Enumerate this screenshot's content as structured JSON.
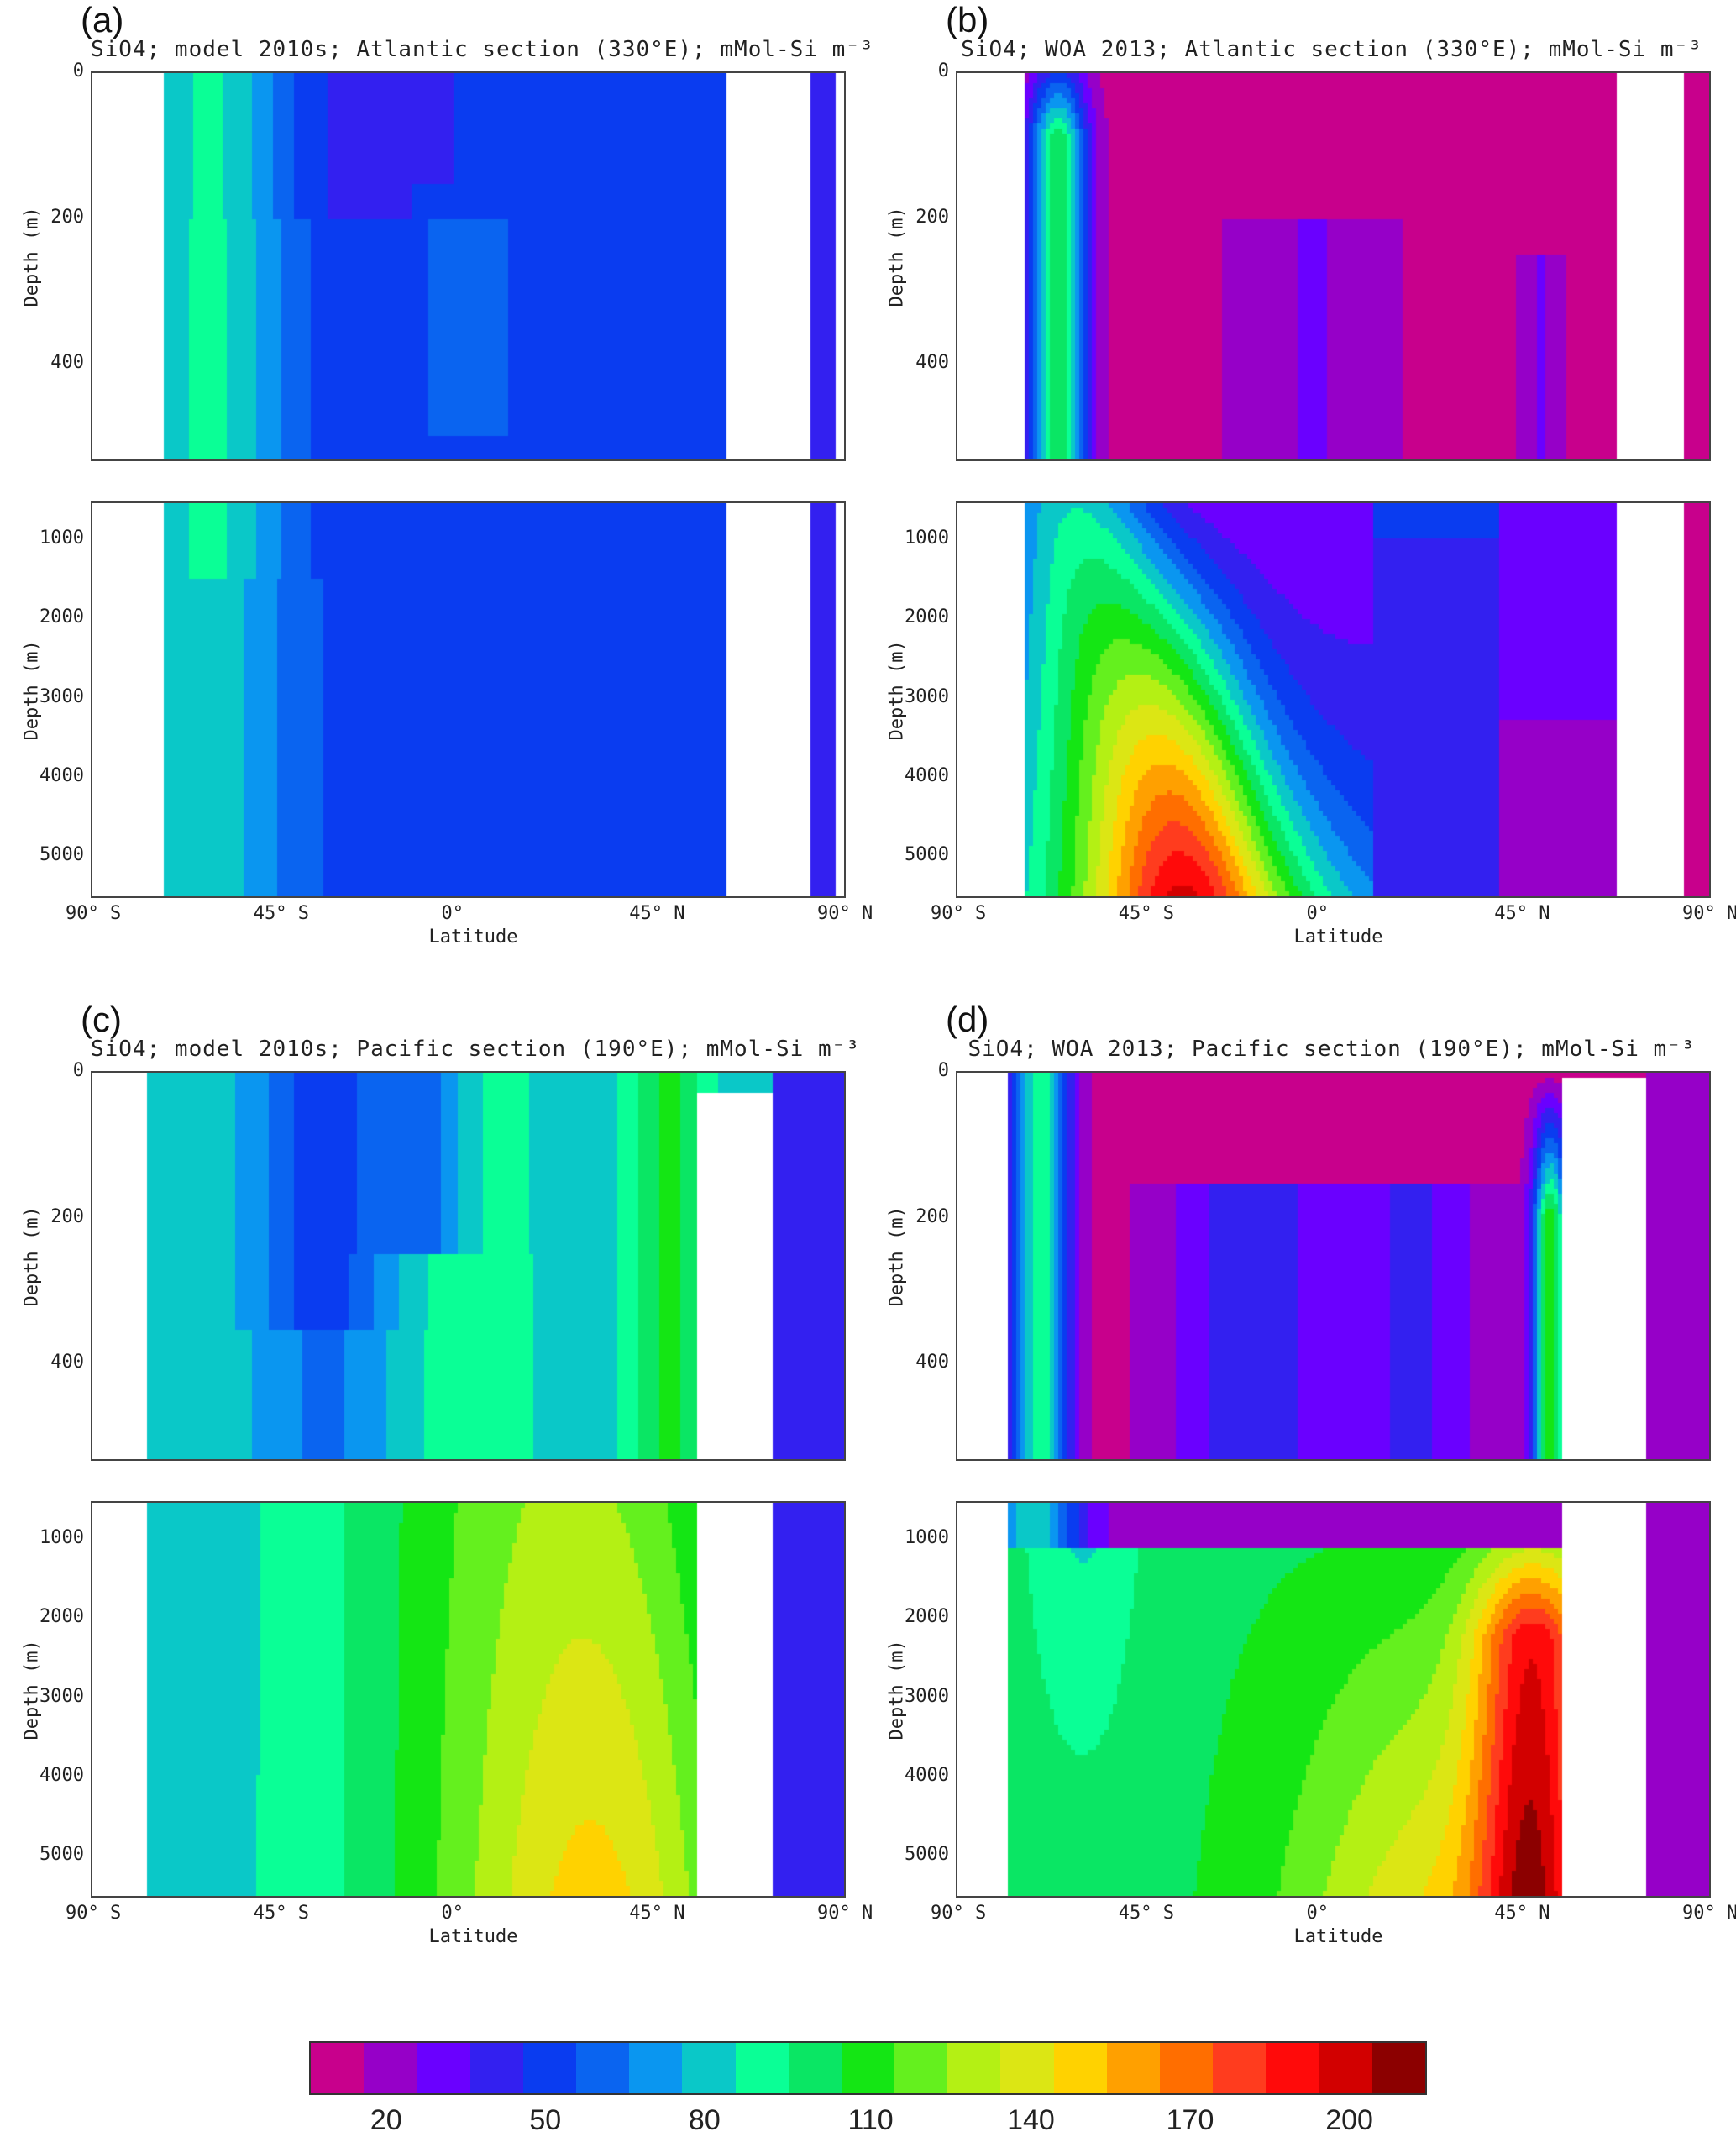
{
  "panels": [
    {
      "id": "a",
      "label": "(a)",
      "title": "SiO4; model 2010s; Atlantic section (330°E); mMol-Si m⁻³",
      "field": "model_atlantic"
    },
    {
      "id": "b",
      "label": "(b)",
      "title": "SiO4; WOA 2013; Atlantic section (330°E); mMol-Si m⁻³",
      "field": "woa_atlantic"
    },
    {
      "id": "c",
      "label": "(c)",
      "title": "SiO4; model 2010s; Pacific section (190°E); mMol-Si m⁻³",
      "field": "model_pacific"
    },
    {
      "id": "d",
      "label": "(d)",
      "title": "SiO4; WOA 2013; Pacific section (190°E); mMol-Si m⁻³",
      "field": "woa_pacific"
    }
  ],
  "axes": {
    "ylabel": "Depth (m)",
    "xlabel": "Latitude",
    "upper_yticks": [
      "0",
      "200",
      "400"
    ],
    "lower_yticks": [
      "1000",
      "2000",
      "3000",
      "4000",
      "5000"
    ],
    "xticks": [
      "90° S",
      "45° S",
      "0°",
      "45° N",
      "90° N"
    ]
  },
  "colorbar": {
    "ticks": [
      "20",
      "50",
      "80",
      "110",
      "140",
      "170",
      "200"
    ],
    "colors": [
      "#c8008c",
      "#9600c8",
      "#6a00ff",
      "#3320f0",
      "#0a3cf0",
      "#0a64f0",
      "#0a96f0",
      "#0ac8c8",
      "#0aff96",
      "#0ae664",
      "#14e614",
      "#64f01e",
      "#b4f014",
      "#dce614",
      "#ffd200",
      "#ffa000",
      "#ff6e00",
      "#ff3c1e",
      "#ff0a0a",
      "#d20000",
      "#8c0000"
    ]
  },
  "chart_data": [
    {
      "type": "heatmap",
      "title": "SiO4; model 2010s; Atlantic section (330°E); mMol-Si m⁻³",
      "xlabel": "Latitude",
      "ylabel": "Depth (m)",
      "xlim": [
        -90,
        90
      ],
      "ylim_upper": [
        0,
        530
      ],
      "ylim_lower": [
        530,
        5500
      ],
      "colorbar_range": [
        5,
        210
      ],
      "summary_values_by_lat_depth": {
        "upper": {
          "lat": [
            -75,
            -55,
            -45,
            -30,
            -15,
            0,
            15,
            30,
            45,
            60
          ],
          "values": [
            75,
            80,
            70,
            60,
            50,
            55,
            45,
            40,
            40,
            40
          ]
        },
        "deep": {
          "lat": [
            -75,
            -55,
            -45,
            -30,
            -15,
            0,
            15,
            30,
            45,
            60
          ],
          "values": [
            80,
            80,
            70,
            60,
            50,
            50,
            45,
            45,
            45,
            45
          ]
        }
      }
    },
    {
      "type": "heatmap",
      "title": "SiO4; WOA 2013; Atlantic section (330°E); mMol-Si m⁻³",
      "xlabel": "Latitude",
      "ylabel": "Depth (m)",
      "xlim": [
        -90,
        90
      ],
      "colorbar_range": [
        5,
        210
      ],
      "summary_values_by_lat_depth": {
        "upper": {
          "lat": [
            -75,
            -60,
            -50,
            -30,
            0,
            30,
            60
          ],
          "values": [
            90,
            100,
            40,
            10,
            20,
            15,
            10
          ]
        },
        "deep": {
          "lat": [
            -75,
            -60,
            -50,
            -30,
            0,
            30,
            60
          ],
          "values": [
            130,
            120,
            110,
            90,
            50,
            40,
            30
          ]
        }
      }
    },
    {
      "type": "heatmap",
      "title": "SiO4; model 2010s; Pacific section (190°E); mMol-Si m⁻³",
      "xlabel": "Latitude",
      "ylabel": "Depth (m)",
      "xlim": [
        -90,
        90
      ],
      "colorbar_range": [
        5,
        210
      ],
      "summary_values_by_lat_depth": {
        "upper": {
          "lat": [
            -75,
            -50,
            -30,
            0,
            30,
            50,
            75
          ],
          "values": [
            85,
            80,
            45,
            90,
            80,
            110,
            40
          ]
        },
        "deep": {
          "lat": [
            -75,
            -50,
            -30,
            0,
            30,
            50,
            75
          ],
          "values": [
            80,
            80,
            110,
            120,
            135,
            135,
            40
          ]
        }
      }
    },
    {
      "type": "heatmap",
      "title": "SiO4; WOA 2013; Pacific section (190°E); mMol-Si m⁻³",
      "xlabel": "Latitude",
      "ylabel": "Depth (m)",
      "xlim": [
        -90,
        90
      ],
      "colorbar_range": [
        5,
        210
      ],
      "summary_values_by_lat_depth": {
        "upper": {
          "lat": [
            -75,
            -60,
            -30,
            0,
            30,
            50,
            75
          ],
          "values": [
            90,
            40,
            10,
            20,
            40,
            100,
            15
          ]
        },
        "deep": {
          "lat": [
            -75,
            -60,
            -30,
            0,
            30,
            50,
            75
          ],
          "values": [
            120,
            130,
            135,
            150,
            160,
            180,
            30
          ]
        }
      }
    }
  ]
}
